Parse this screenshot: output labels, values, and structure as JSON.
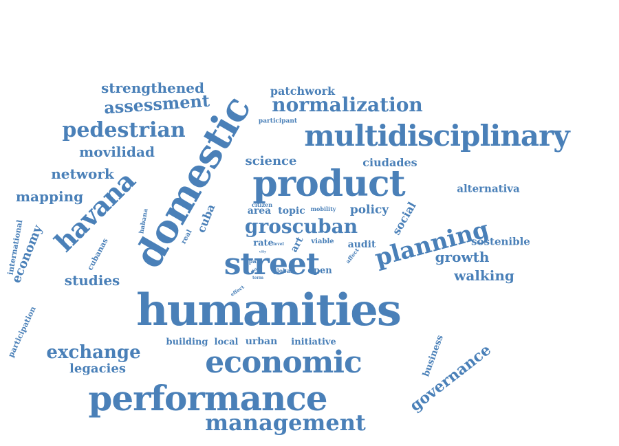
{
  "color": "#4a80b8",
  "words": [
    {
      "text": "humanities",
      "size": 64
    },
    {
      "text": "domestic",
      "size": 56
    },
    {
      "text": "product",
      "size": 52
    },
    {
      "text": "performance",
      "size": 50
    },
    {
      "text": "economic",
      "size": 44
    },
    {
      "text": "street",
      "size": 44
    },
    {
      "text": "multidisciplinary",
      "size": 42
    },
    {
      "text": "havana",
      "size": 38
    },
    {
      "text": "planning",
      "size": 34
    },
    {
      "text": "management",
      "size": 32
    },
    {
      "text": "pedestrian",
      "size": 30
    },
    {
      "text": "groscuban",
      "size": 28
    },
    {
      "text": "normalization",
      "size": 28
    },
    {
      "text": "exchange",
      "size": 26
    },
    {
      "text": "assessment",
      "size": 24
    },
    {
      "text": "governance",
      "size": 22
    },
    {
      "text": "strengthened",
      "size": 20
    },
    {
      "text": "movilidad",
      "size": 20
    },
    {
      "text": "network",
      "size": 20
    },
    {
      "text": "mapping",
      "size": 20
    },
    {
      "text": "studies",
      "size": 20
    },
    {
      "text": "walking",
      "size": 20
    },
    {
      "text": "growth",
      "size": 20
    },
    {
      "text": "science",
      "size": 18
    },
    {
      "text": "economy",
      "size": 18
    },
    {
      "text": "legacies",
      "size": 18
    },
    {
      "text": "policy",
      "size": 17
    },
    {
      "text": "ciudades",
      "size": 16
    },
    {
      "text": "patchwork",
      "size": 16
    },
    {
      "text": "cuba",
      "size": 16
    },
    {
      "text": "social",
      "size": 16
    },
    {
      "text": "alternativa",
      "size": 15
    },
    {
      "text": "sostenible",
      "size": 15
    },
    {
      "text": "business",
      "size": 13
    },
    {
      "text": "urban",
      "size": 14
    },
    {
      "text": "area",
      "size": 14
    },
    {
      "text": "topic",
      "size": 14
    },
    {
      "text": "audit",
      "size": 14
    },
    {
      "text": "open",
      "size": 13
    },
    {
      "text": "local",
      "size": 13
    },
    {
      "text": "building",
      "size": 13
    },
    {
      "text": "initiative",
      "size": 13
    },
    {
      "text": "international",
      "size": 11
    },
    {
      "text": "participation",
      "size": 11
    },
    {
      "text": "art",
      "size": 14
    },
    {
      "text": "rate",
      "size": 13
    },
    {
      "text": "viable",
      "size": 10
    },
    {
      "text": "cubanas",
      "size": 11
    },
    {
      "text": "habana",
      "size": 9
    },
    {
      "text": "real",
      "size": 10
    },
    {
      "text": "participant",
      "size": 9
    },
    {
      "text": "citizen",
      "size": 8
    },
    {
      "text": "mobility",
      "size": 8
    },
    {
      "text": "affect",
      "size": 8
    },
    {
      "text": "global",
      "size": 8
    },
    {
      "text": "level",
      "size": 6
    },
    {
      "text": "para",
      "size": 8
    },
    {
      "text": "term",
      "size": 6
    },
    {
      "text": "effect",
      "size": 7
    },
    {
      "text": "city",
      "size": 5
    },
    {
      "text": "cities",
      "size": 5
    }
  ]
}
